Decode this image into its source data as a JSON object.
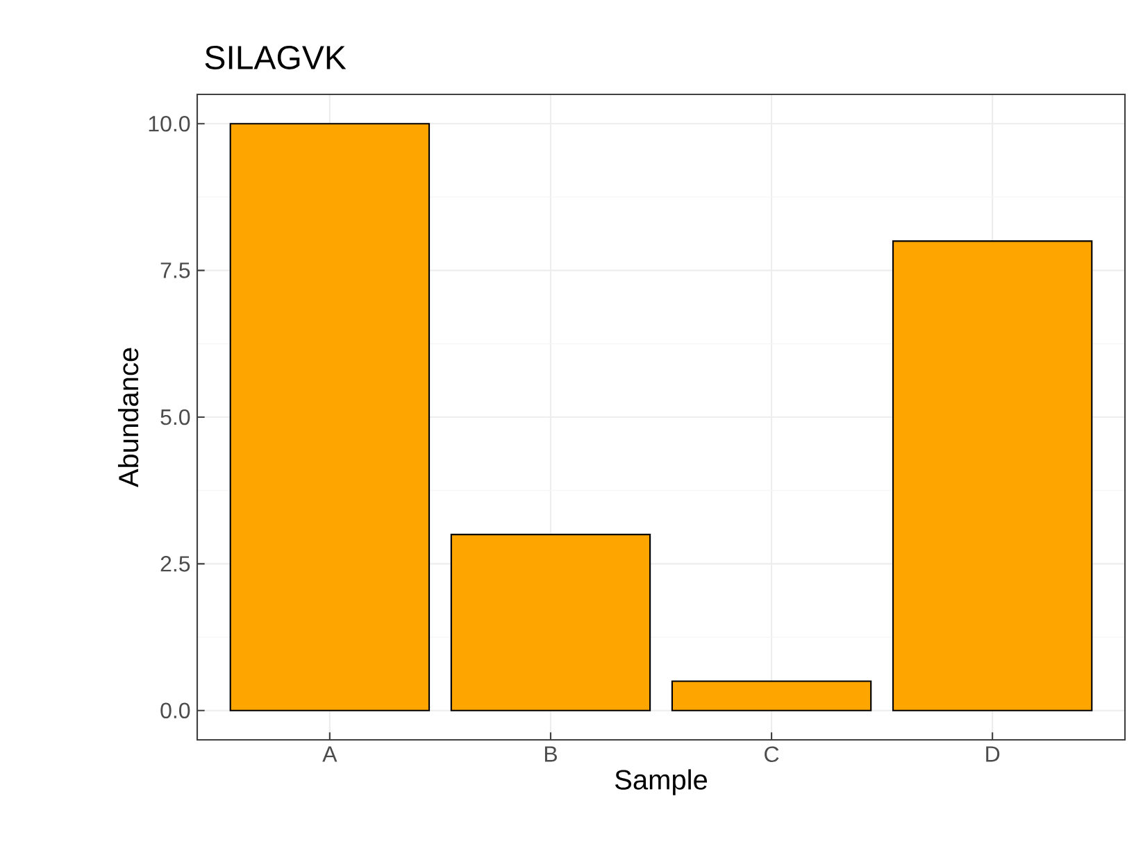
{
  "chart_data": {
    "type": "bar",
    "title": "SILAGVK",
    "xlabel": "Sample",
    "ylabel": "Abundance",
    "categories": [
      "A",
      "B",
      "C",
      "D"
    ],
    "values": [
      10,
      3,
      0.5,
      8
    ],
    "color": "#ffa500",
    "ylim": [
      -0.5,
      10.5
    ],
    "yticks": [
      {
        "value": 0,
        "label": "0.0"
      },
      {
        "value": 2.5,
        "label": "2.5"
      },
      {
        "value": 5,
        "label": "5.0"
      },
      {
        "value": 7.5,
        "label": "7.5"
      },
      {
        "value": 10,
        "label": "10.0"
      }
    ],
    "grid": true
  }
}
